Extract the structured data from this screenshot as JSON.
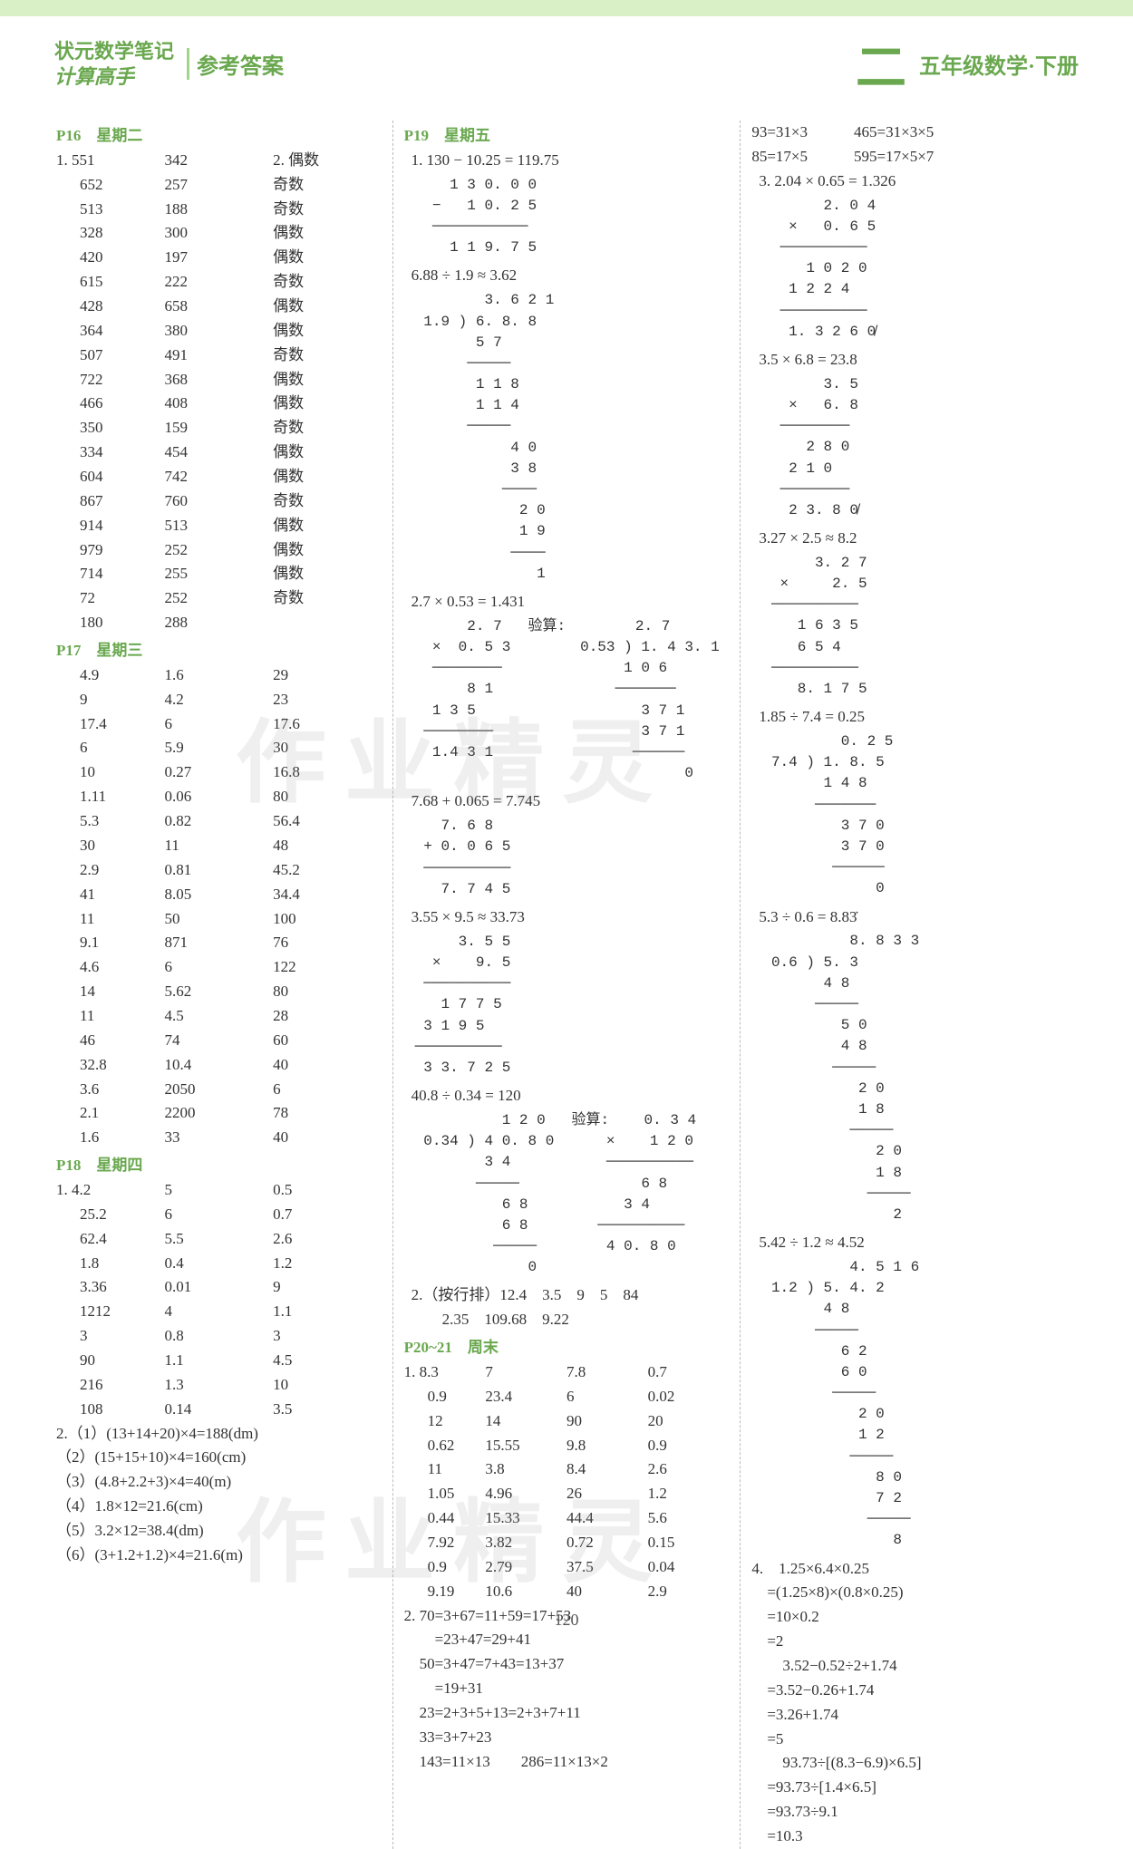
{
  "header": {
    "title_line1": "状元数学笔记",
    "title_line2": "计算高手",
    "answer_label": "参考答案",
    "big_char": "二",
    "grade": "五年级数学·下册"
  },
  "watermark": "作业精灵",
  "page_number": "120",
  "col1": {
    "p16": {
      "head": "P16　星期二",
      "prefix1": "1.",
      "prefix2": "2.",
      "rows": [
        [
          "551",
          "342",
          "偶数"
        ],
        [
          "652",
          "257",
          "奇数"
        ],
        [
          "513",
          "188",
          "奇数"
        ],
        [
          "328",
          "300",
          "偶数"
        ],
        [
          "420",
          "197",
          "偶数"
        ],
        [
          "615",
          "222",
          "奇数"
        ],
        [
          "428",
          "658",
          "偶数"
        ],
        [
          "364",
          "380",
          "偶数"
        ],
        [
          "507",
          "491",
          "奇数"
        ],
        [
          "722",
          "368",
          "偶数"
        ],
        [
          "466",
          "408",
          "偶数"
        ],
        [
          "350",
          "159",
          "奇数"
        ],
        [
          "334",
          "454",
          "偶数"
        ],
        [
          "604",
          "742",
          "偶数"
        ],
        [
          "867",
          "760",
          "奇数"
        ],
        [
          "914",
          "513",
          "偶数"
        ],
        [
          "979",
          "252",
          "偶数"
        ],
        [
          "714",
          "255",
          "偶数"
        ],
        [
          "72",
          "252",
          "奇数"
        ],
        [
          "180",
          "288",
          ""
        ]
      ]
    },
    "p17": {
      "head": "P17　星期三",
      "rows": [
        [
          "4.9",
          "1.6",
          "29"
        ],
        [
          "9",
          "4.2",
          "23"
        ],
        [
          "17.4",
          "6",
          "17.6"
        ],
        [
          "6",
          "5.9",
          "30"
        ],
        [
          "10",
          "0.27",
          "16.8"
        ],
        [
          "1.11",
          "0.06",
          "80"
        ],
        [
          "5.3",
          "0.82",
          "56.4"
        ],
        [
          "30",
          "11",
          "48"
        ],
        [
          "2.9",
          "0.81",
          "45.2"
        ],
        [
          "41",
          "8.05",
          "34.4"
        ],
        [
          "11",
          "50",
          "100"
        ],
        [
          "9.1",
          "871",
          "76"
        ],
        [
          "4.6",
          "6",
          "122"
        ],
        [
          "14",
          "5.62",
          "80"
        ],
        [
          "11",
          "4.5",
          "28"
        ],
        [
          "46",
          "74",
          "60"
        ],
        [
          "32.8",
          "10.4",
          "40"
        ],
        [
          "3.6",
          "2050",
          "6"
        ],
        [
          "2.1",
          "2200",
          "78"
        ],
        [
          "1.6",
          "33",
          "40"
        ]
      ]
    },
    "p18": {
      "head": "P18　星期四",
      "prefix1": "1.",
      "rows": [
        [
          "4.2",
          "5",
          "0.5"
        ],
        [
          "25.2",
          "6",
          "0.7"
        ],
        [
          "62.4",
          "5.5",
          "2.6"
        ],
        [
          "1.8",
          "0.4",
          "1.2"
        ],
        [
          "3.36",
          "0.01",
          "9"
        ],
        [
          "1212",
          "4",
          "1.1"
        ],
        [
          "3",
          "0.8",
          "3"
        ],
        [
          "90",
          "1.1",
          "4.5"
        ],
        [
          "216",
          "1.3",
          "10"
        ],
        [
          "108",
          "0.14",
          "3.5"
        ]
      ],
      "q2": [
        "2.（1）(13+14+20)×4=188(dm)",
        "（2）(15+15+10)×4=160(cm)",
        "（3）(4.8+2.2+3)×4=40(m)",
        "（4）1.8×12=21.6(cm)",
        "（5）3.2×12=38.4(dm)",
        "（6）(3+1.2+1.2)×4=21.6(m)"
      ]
    }
  },
  "col2": {
    "p19": {
      "head": "P19　星期五",
      "eq1": "1. 130 − 10.25 = 119.75",
      "work1": "    1 3 0. 0 0\n  −   1 0. 2 5\n  ───────────\n    1 1 9. 7 5",
      "eq2": "6.88 ÷ 1.9 ≈ 3.62",
      "work2": "        3. 6 2 1\n 1.9 ) 6. 8. 8\n       5 7\n      ─────\n       1 1 8\n       1 1 4\n      ─────\n           4 0\n           3 8\n          ────\n            2 0\n            1 9\n           ────\n              1",
      "eq3": "2.7 × 0.53 = 1.431",
      "work3": "      2. 7   验算:        2. 7\n  ×  0. 5 3        0.53 ) 1. 4 3. 1\n  ────────              1 0 6\n      8 1              ───────\n  1 3 5                   3 7 1\n ────────                 3 7 1\n  1.4 3 1                ──────\n                               0",
      "eq4": "7.68 + 0.065 = 7.745",
      "work4": "   7. 6 8\n + 0. 0 6 5\n ──────────\n   7. 7 4 5",
      "eq5": "3.55 × 9.5 ≈ 33.73",
      "work5": "     3. 5 5\n  ×    9. 5\n ──────────\n   1 7 7 5\n 3 1 9 5\n──────────\n 3 3. 7 2 5",
      "eq6": "40.8 ÷ 0.34 = 120",
      "work6": "          1 2 0   验算:    0. 3 4\n 0.34 ) 4 0. 8 0      ×    1 2 0\n        3 4           ──────────\n       ─────              6 8\n          6 8           3 4\n          6 8        ──────────\n         ─────        4 0. 8 0\n             0",
      "q2": "2.（按行排）12.4　3.5　9　5　84",
      "q2b": "　　2.35　109.68　9.22"
    },
    "p20": {
      "head": "P20~21　周末",
      "prefix1": "1.",
      "rows": [
        [
          "8.3",
          "7",
          "7.8",
          "0.7"
        ],
        [
          "0.9",
          "23.4",
          "6",
          "0.02"
        ],
        [
          "12",
          "14",
          "90",
          "20"
        ],
        [
          "0.62",
          "15.55",
          "9.8",
          "0.9"
        ],
        [
          "11",
          "3.8",
          "8.4",
          "2.6"
        ],
        [
          "1.05",
          "4.96",
          "26",
          "1.2"
        ],
        [
          "0.44",
          "15.33",
          "44.4",
          "5.6"
        ],
        [
          "7.92",
          "3.82",
          "0.72",
          "0.15"
        ],
        [
          "0.9",
          "2.79",
          "37.5",
          "0.04"
        ],
        [
          "9.19",
          "10.6",
          "40",
          "2.9"
        ]
      ],
      "q2": [
        "2. 70=3+67=11+59=17+53",
        "　　=23+47=29+41",
        "　50=3+47=7+43=13+37",
        "　　=19+31",
        "　23=2+3+5+13=2+3+7+11",
        "　33=3+7+23",
        "　143=11×13　　286=11×13×2"
      ]
    }
  },
  "col3": {
    "topfacts": [
      "93=31×3　　　465=31×3×5",
      "85=17×5　　　595=17×5×7"
    ],
    "eq1": "3. 2.04 × 0.65 = 1.326",
    "work1": "       2. 0 4\n   ×   0. 6 5\n  ──────────\n     1 0 2 0\n   1 2 2 4\n  ──────────\n   1. 3 2 6 0̸",
    "eq2": "3.5 × 6.8 = 23.8",
    "work2": "       3. 5\n   ×   6. 8\n  ────────\n     2 8 0\n   2 1 0\n  ────────\n   2 3. 8 0̸",
    "eq3": "3.27 × 2.5 ≈ 8.2",
    "work3": "      3. 2 7\n  ×     2. 5\n ──────────\n    1 6 3 5\n    6 5 4\n ──────────\n    8. 1 7 5",
    "eq4": "1.85 ÷ 7.4 = 0.25",
    "work4": "         0. 2 5\n 7.4 ) 1. 8. 5\n       1 4 8\n      ───────\n         3 7 0\n         3 7 0\n        ──────\n             0",
    "eq5": "5.3 ÷ 0.6 = 8.83̇",
    "work5": "          8. 8 3 3\n 0.6 ) 5. 3\n       4 8\n      ─────\n         5 0\n         4 8\n        ─────\n           2 0\n           1 8\n          ─────\n             2 0\n             1 8\n            ─────\n               2",
    "eq6": "5.42 ÷ 1.2 ≈ 4.52",
    "work6": "          4. 5 1 6\n 1.2 ) 5. 4. 2\n       4 8\n      ─────\n         6 2\n         6 0\n        ─────\n           2 0\n           1 2\n          ─────\n             8 0\n             7 2\n            ─────\n               8",
    "q4": [
      "4.　1.25×6.4×0.25",
      "　=(1.25×8)×(0.8×0.25)",
      "　=10×0.2",
      "　=2",
      "　　3.52−0.52÷2+1.74",
      "　=3.52−0.26+1.74",
      "　=3.26+1.74",
      "　=5",
      "　　93.73÷[(8.3−6.9)×6.5]",
      "　=93.73÷[1.4×6.5]",
      "　=93.73÷9.1",
      "　=10.3"
    ]
  }
}
